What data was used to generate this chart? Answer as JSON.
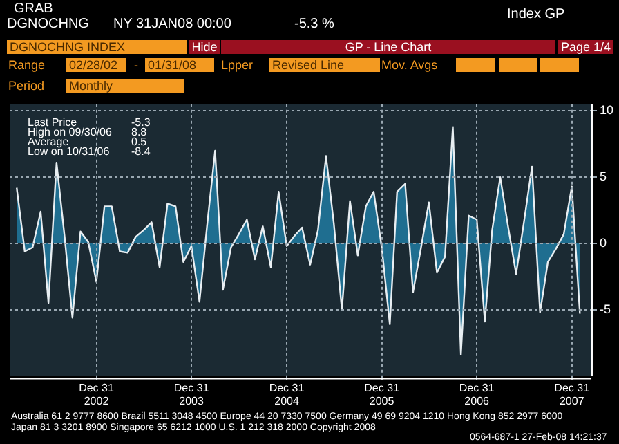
{
  "chart_data": {
    "type": "area",
    "x": [
      "2002-02-28",
      "2002-03-31",
      "2002-04-30",
      "2002-05-31",
      "2002-06-30",
      "2002-07-31",
      "2002-08-31",
      "2002-09-30",
      "2002-10-31",
      "2002-11-30",
      "2002-12-31",
      "2003-01-31",
      "2003-02-28",
      "2003-03-31",
      "2003-04-30",
      "2003-05-31",
      "2003-06-30",
      "2003-07-31",
      "2003-08-31",
      "2003-09-30",
      "2003-10-31",
      "2003-11-30",
      "2003-12-31",
      "2004-01-31",
      "2004-02-29",
      "2004-03-31",
      "2004-04-30",
      "2004-05-31",
      "2004-06-30",
      "2004-07-31",
      "2004-08-31",
      "2004-09-30",
      "2004-10-31",
      "2004-11-30",
      "2004-12-31",
      "2005-01-31",
      "2005-02-28",
      "2005-03-31",
      "2005-04-30",
      "2005-05-31",
      "2005-06-30",
      "2005-07-31",
      "2005-08-31",
      "2005-09-30",
      "2005-10-31",
      "2005-11-30",
      "2005-12-31",
      "2006-01-31",
      "2006-02-28",
      "2006-03-31",
      "2006-04-30",
      "2006-05-31",
      "2006-06-30",
      "2006-07-31",
      "2006-08-31",
      "2006-09-30",
      "2006-10-31",
      "2006-11-30",
      "2006-12-31",
      "2007-01-31",
      "2007-02-28",
      "2007-03-31",
      "2007-04-30",
      "2007-05-31",
      "2007-06-30",
      "2007-07-31",
      "2007-08-31",
      "2007-09-30",
      "2007-10-31",
      "2007-11-30",
      "2007-12-31",
      "2008-01-31"
    ],
    "series": [
      {
        "color": "#1f6e90",
        "values": [
          4.2,
          -0.6,
          -0.3,
          2.4,
          -4.5,
          6.1,
          0.5,
          -5.6,
          0.9,
          0.1,
          -2.9,
          2.8,
          2.8,
          -0.6,
          -0.7,
          0.5,
          1.0,
          1.6,
          -1.8,
          3.0,
          2.8,
          -1.4,
          -0.2,
          -4.4,
          1.3,
          7.0,
          -3.5,
          -0.3,
          0.7,
          1.8,
          -1.2,
          1.3,
          -1.8,
          3.9,
          -0.2,
          0.6,
          1.2,
          -1.6,
          1.0,
          6.6,
          1.5,
          -5.0,
          3.2,
          -0.9,
          2.8,
          3.9,
          -0.3,
          -6.1,
          3.9,
          4.5,
          -3.7,
          -0.3,
          3.1,
          -2.2,
          -1.0,
          8.8,
          -8.4,
          2.1,
          1.8,
          -5.9,
          1.0,
          5.0,
          1.3,
          -2.3,
          1.6,
          5.8,
          -5.2,
          -1.4,
          -0.4,
          0.7,
          4.3,
          -5.3
        ]
      }
    ],
    "xlim": [
      "2002-02-01",
      "2008-03-15"
    ],
    "xticks": [
      {
        "value": "2002-12-31",
        "label": "Dec 31\n2002"
      },
      {
        "value": "2003-12-31",
        "label": "Dec 31\n2003"
      },
      {
        "value": "2004-12-31",
        "label": "Dec 31\n2004"
      },
      {
        "value": "2005-12-31",
        "label": "Dec 31\n2005"
      },
      {
        "value": "2006-12-31",
        "label": "Dec 31\n2006"
      },
      {
        "value": "2007-12-31",
        "label": "Dec 31\n2007"
      }
    ],
    "ylim": [
      -10,
      10.5
    ],
    "yticks": [
      -5,
      0,
      5,
      10
    ],
    "grid": true,
    "annotations": [
      "GRAB",
      "DGNOCHNG",
      "NY 31JAN08 00:00",
      "-5.3 %",
      "Index GP",
      "DGNOCHNG INDEX",
      "Hide",
      "GP - Line Chart",
      "Page 1/4",
      "Range",
      "02/28/02",
      "-",
      "01/31/08",
      "Lpper",
      "Revised Line",
      "Mov. Avgs",
      "Period",
      "Monthly",
      "Last Price",
      "-5.3",
      "High on 09/30/06",
      "8.8",
      "Average",
      "0.5",
      "Low on 10/31/06",
      "-8.4",
      "Australia 61 2 9777 8600 Brazil 5511 3048 4500 Europe 44 20 7330 7500 Germany 49 69 9204 1210 Hong Kong 852 2977 6000",
      "Japan 81 3 3201 8900     Singapore 65 6212 1000     U.S. 1 212 318 2000     Copyright 2008",
      "0564-687-1 27-Feb-08 14:21:37"
    ]
  }
}
